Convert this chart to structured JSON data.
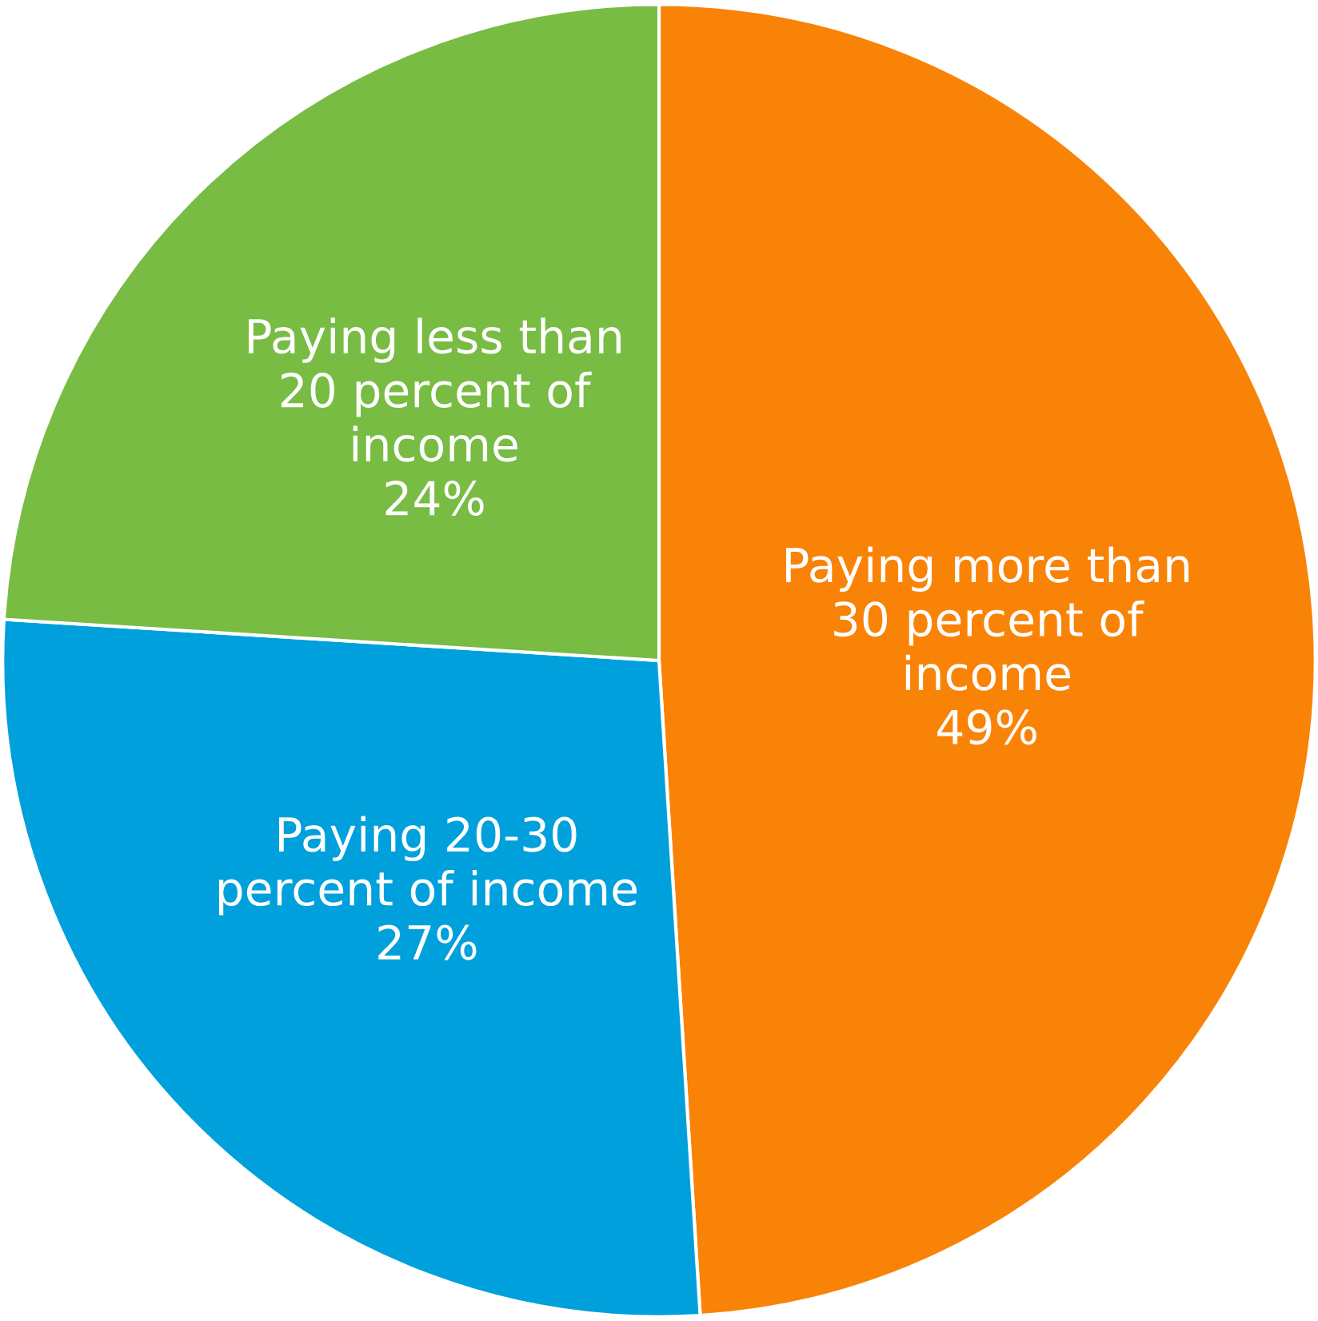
{
  "chart_data": {
    "type": "pie",
    "categories": [
      "Paying more than\n30 percent of\nincome",
      "Paying 20-30\npercent of income",
      "Paying less than\n20 percent of\nincome"
    ],
    "values": [
      49,
      27,
      24
    ],
    "value_labels": [
      "49%",
      "27%",
      "24%"
    ],
    "colors": [
      "#f98307",
      "#00a0dc",
      "#78bc43"
    ]
  }
}
